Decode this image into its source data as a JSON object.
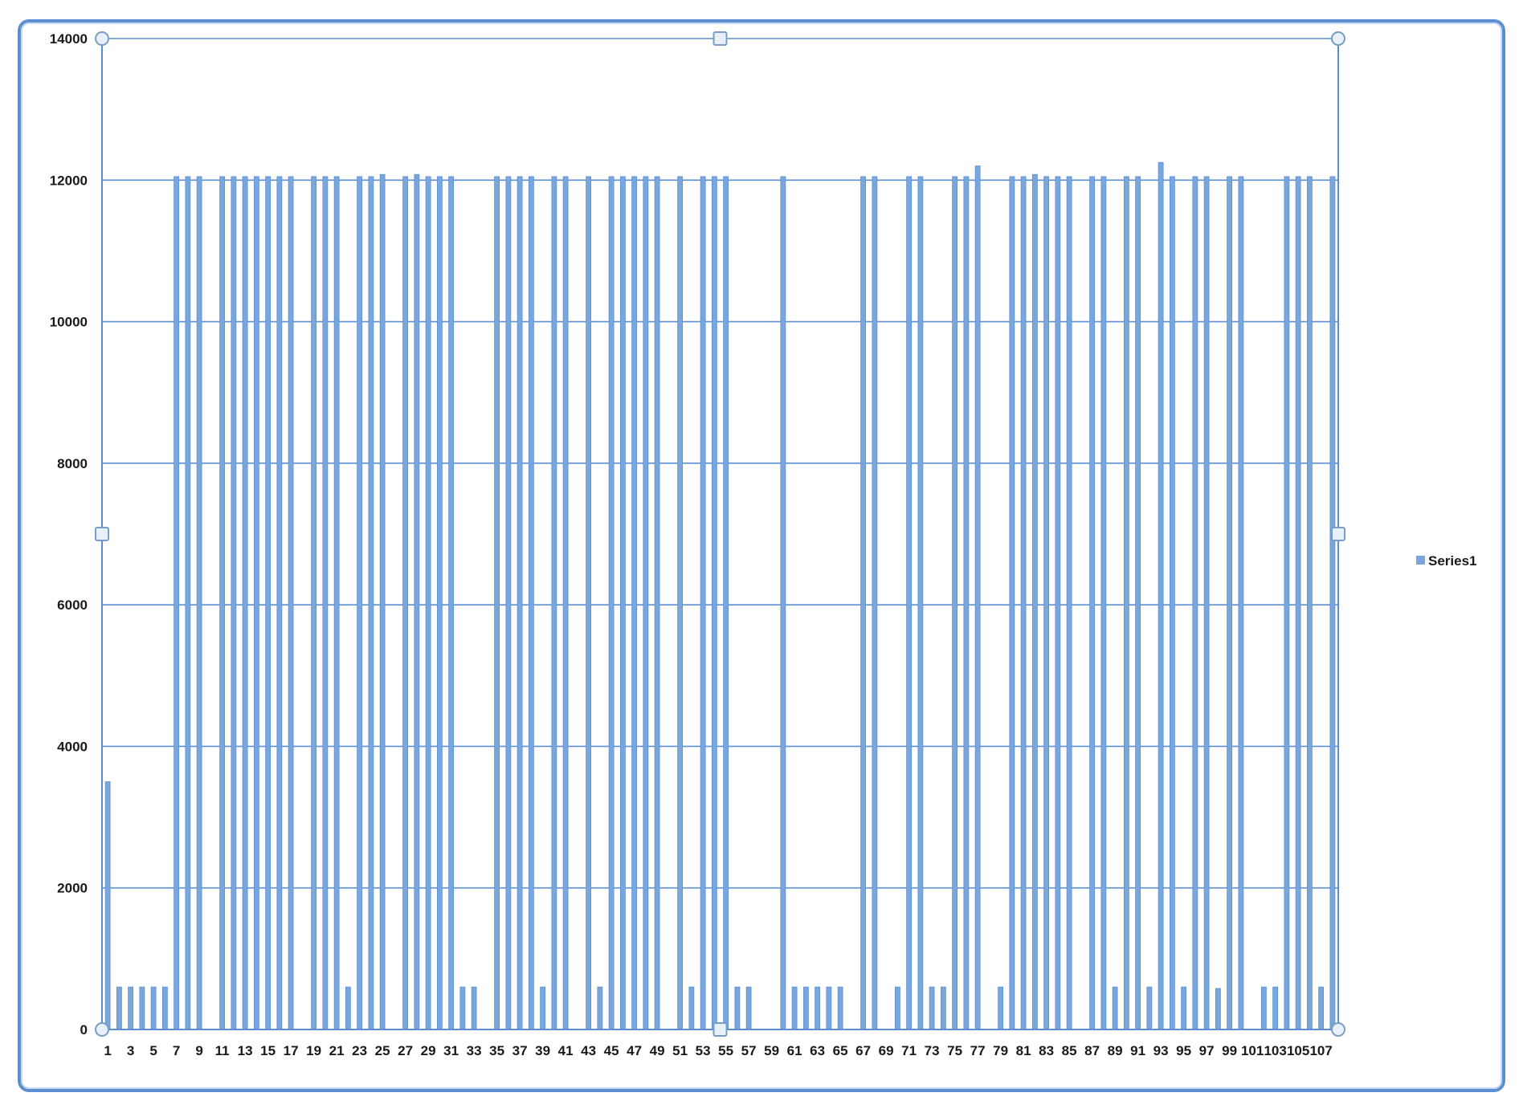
{
  "chart_data": {
    "type": "bar",
    "categories": [
      "1",
      "2",
      "3",
      "4",
      "5",
      "6",
      "7",
      "8",
      "9",
      "10",
      "11",
      "12",
      "13",
      "14",
      "15",
      "16",
      "17",
      "18",
      "19",
      "20",
      "21",
      "22",
      "23",
      "24",
      "25",
      "26",
      "27",
      "28",
      "29",
      "30",
      "31",
      "32",
      "33",
      "34",
      "35",
      "36",
      "37",
      "38",
      "39",
      "40",
      "41",
      "42",
      "43",
      "44",
      "45",
      "46",
      "47",
      "48",
      "49",
      "50",
      "51",
      "52",
      "53",
      "54",
      "55",
      "56",
      "57",
      "58",
      "59",
      "60",
      "61",
      "62",
      "63",
      "64",
      "65",
      "66",
      "67",
      "68",
      "69",
      "70",
      "71",
      "72",
      "73",
      "74",
      "75",
      "76",
      "77",
      "78",
      "79",
      "80",
      "81",
      "82",
      "83",
      "84",
      "85",
      "86",
      "87",
      "88",
      "89",
      "90",
      "91",
      "92",
      "93",
      "94",
      "95",
      "96",
      "97",
      "98",
      "99",
      "100",
      "101",
      "102",
      "103",
      "104",
      "105",
      "106",
      "107",
      "108"
    ],
    "x_tick_labels": [
      "1",
      "3",
      "5",
      "7",
      "9",
      "11",
      "13",
      "15",
      "17",
      "19",
      "21",
      "23",
      "25",
      "27",
      "29",
      "31",
      "33",
      "35",
      "37",
      "39",
      "41",
      "43",
      "45",
      "47",
      "49",
      "51",
      "53",
      "55",
      "57",
      "59",
      "61",
      "63",
      "65",
      "67",
      "69",
      "71",
      "73",
      "75",
      "77",
      "79",
      "81",
      "83",
      "85",
      "87",
      "89",
      "91",
      "93",
      "95",
      "97",
      "99",
      "101",
      "103",
      "105",
      "107"
    ],
    "series": [
      {
        "name": "Series1",
        "values": [
          3500,
          600,
          600,
          600,
          600,
          600,
          12050,
          12050,
          12050,
          0,
          12050,
          12050,
          12050,
          12050,
          12050,
          12050,
          12050,
          0,
          12050,
          12050,
          12050,
          600,
          12050,
          12050,
          12080,
          0,
          12050,
          12080,
          12050,
          12050,
          12050,
          600,
          600,
          0,
          12050,
          12050,
          12050,
          12050,
          600,
          12050,
          12050,
          0,
          12050,
          600,
          12050,
          12050,
          12050,
          12050,
          12050,
          0,
          12050,
          600,
          12050,
          12050,
          12050,
          600,
          600,
          0,
          0,
          12050,
          600,
          600,
          600,
          600,
          600,
          0,
          12050,
          12050,
          0,
          600,
          12050,
          12050,
          600,
          600,
          12050,
          12050,
          12200,
          0,
          600,
          12050,
          12050,
          12080,
          12050,
          12050,
          12050,
          0,
          12050,
          12050,
          600,
          12050,
          12050,
          600,
          12250,
          12050,
          600,
          12050,
          12050,
          580,
          12050,
          12050,
          0,
          600,
          600,
          12050,
          12050,
          12050,
          600,
          12050
        ]
      }
    ],
    "ylim": [
      0,
      14000
    ],
    "y_ticks": [
      0,
      2000,
      4000,
      6000,
      8000,
      10000,
      12000,
      14000
    ],
    "grid": true,
    "legend": "right",
    "colors": {
      "bar": "#79a6dd",
      "bar_edge": "#5b8fd1",
      "grid": "#5b8fd1",
      "frame": "#5b8fd1"
    }
  }
}
